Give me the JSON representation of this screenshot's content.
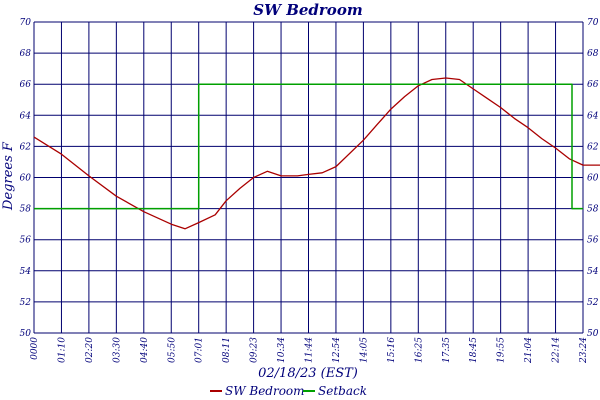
{
  "chart_data": {
    "type": "line",
    "title": "SW Bedroom",
    "xlabel": "02/18/23 (EST)",
    "ylabel": "Degrees F",
    "ylim": [
      50,
      70
    ],
    "yticks": [
      50,
      52,
      54,
      56,
      58,
      60,
      62,
      64,
      66,
      68,
      70
    ],
    "y2ticks": [
      50,
      52,
      54,
      56,
      58,
      60,
      62,
      64,
      66,
      68,
      70
    ],
    "x_tick_labels": [
      "0000",
      "01:10",
      "02:20",
      "03:30",
      "04:40",
      "05:50",
      "07:01",
      "08:11",
      "09:23",
      "10:34",
      "11:44",
      "12:54",
      "14:05",
      "15:16",
      "16:25",
      "17:35",
      "18:45",
      "19:55",
      "21:04",
      "22:14",
      "23:24"
    ],
    "grid": true,
    "legend_position": "bottom-center",
    "colors": {
      "grid": "#00006e",
      "text": "#00007a",
      "sw_bedroom": "#aa0000",
      "setback": "#00a000"
    },
    "series": [
      {
        "name": "SW Bedroom",
        "x": [
          0,
          1,
          2,
          3,
          4,
          5,
          5.5,
          6,
          6.6,
          7,
          7.5,
          8,
          8.5,
          9,
          9.6,
          10,
          10.5,
          11,
          12,
          12.5,
          13,
          13.5,
          14,
          14.5,
          15,
          15.5,
          16,
          16.5,
          17,
          17.5,
          18,
          18.5,
          19,
          19.5,
          20,
          20.5,
          21
        ],
        "y": [
          62.6,
          61.5,
          60.1,
          58.8,
          57.8,
          57.0,
          56.7,
          57.1,
          57.6,
          58.5,
          59.3,
          60.0,
          60.4,
          60.1,
          60.1,
          60.2,
          60.3,
          60.7,
          62.4,
          63.4,
          64.4,
          65.2,
          65.9,
          66.3,
          66.4,
          66.3,
          65.7,
          65.1,
          64.5,
          63.8,
          63.2,
          62.5,
          61.9,
          61.2,
          60.8,
          60.8,
          60.8
        ]
      },
      {
        "name": "Setback",
        "x": [
          0,
          6,
          6,
          19.6,
          19.6,
          20
        ],
        "y": [
          58,
          58,
          66,
          66,
          58,
          58
        ]
      }
    ]
  }
}
